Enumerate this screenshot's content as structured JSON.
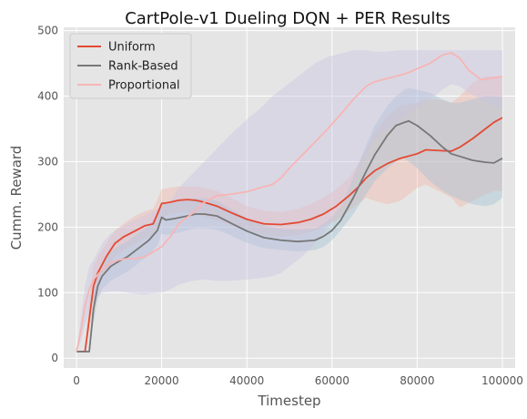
{
  "chart_data": {
    "type": "line",
    "title": "CartPole-v1 Dueling DQN + PER Results",
    "xlabel": "Timestep",
    "ylabel": "Cumm. Reward",
    "xlim": [
      -3000,
      103000
    ],
    "ylim": [
      -15,
      505
    ],
    "xticks": [
      0,
      20000,
      40000,
      60000,
      80000,
      100000
    ],
    "yticks": [
      0,
      100,
      200,
      300,
      400,
      500
    ],
    "grid": true,
    "legend_position": "top-left",
    "series": [
      {
        "name": "Uniform",
        "color": "#e24a33",
        "band_color": "#f4b4a4",
        "x": [
          0,
          2000,
          3000,
          4000,
          5000,
          7000,
          9000,
          11000,
          14000,
          16000,
          18000,
          19000,
          20000,
          22000,
          24000,
          26000,
          28000,
          30000,
          33000,
          36000,
          40000,
          44000,
          48000,
          52000,
          55000,
          58000,
          61000,
          64000,
          66000,
          68000,
          70000,
          73000,
          76000,
          80000,
          82000,
          85000,
          88000,
          90000,
          93000,
          96000,
          98000,
          100000
        ],
        "y": [
          10,
          10,
          60,
          110,
          130,
          155,
          175,
          185,
          195,
          202,
          205,
          220,
          236,
          238,
          241,
          242,
          241,
          238,
          232,
          223,
          212,
          205,
          204,
          207,
          212,
          220,
          232,
          248,
          260,
          275,
          286,
          297,
          305,
          312,
          318,
          317,
          316,
          322,
          335,
          350,
          360,
          367
        ],
        "lower": [
          10,
          10,
          40,
          85,
          110,
          135,
          155,
          165,
          175,
          183,
          188,
          200,
          215,
          220,
          222,
          222,
          220,
          216,
          210,
          203,
          195,
          188,
          185,
          188,
          192,
          200,
          210,
          225,
          235,
          245,
          240,
          235,
          240,
          260,
          265,
          255,
          245,
          230,
          240,
          250,
          255,
          255
        ],
        "upper": [
          10,
          12,
          85,
          140,
          155,
          175,
          195,
          205,
          218,
          224,
          228,
          242,
          258,
          260,
          262,
          262,
          262,
          260,
          255,
          246,
          232,
          225,
          223,
          228,
          235,
          245,
          258,
          275,
          295,
          320,
          345,
          370,
          385,
          390,
          395,
          395,
          390,
          400,
          420,
          430,
          430,
          430
        ]
      },
      {
        "name": "Rank-Based",
        "color": "#777777",
        "band_color": "#9ec1d4",
        "x": [
          0,
          2000,
          3000,
          4000,
          5000,
          6000,
          8000,
          10000,
          12000,
          14000,
          17000,
          19000,
          20000,
          21000,
          23000,
          26000,
          28000,
          30000,
          33000,
          36000,
          40000,
          44000,
          48000,
          52000,
          56000,
          58000,
          60000,
          62000,
          65000,
          68000,
          70000,
          73000,
          75000,
          77000,
          78000,
          80000,
          83000,
          86000,
          88000,
          90000,
          93000,
          96000,
          98000,
          100000
        ],
        "y": [
          10,
          10,
          10,
          75,
          110,
          125,
          140,
          148,
          155,
          165,
          180,
          195,
          215,
          211,
          213,
          217,
          220,
          220,
          217,
          207,
          194,
          184,
          180,
          178,
          180,
          186,
          195,
          210,
          245,
          285,
          310,
          340,
          355,
          360,
          362,
          355,
          340,
          322,
          312,
          308,
          302,
          299,
          298,
          305
        ],
        "lower": [
          10,
          10,
          10,
          55,
          90,
          105,
          118,
          125,
          132,
          142,
          158,
          172,
          190,
          188,
          190,
          195,
          198,
          198,
          196,
          188,
          176,
          168,
          165,
          163,
          165,
          170,
          180,
          195,
          220,
          250,
          270,
          290,
          300,
          305,
          300,
          290,
          270,
          255,
          248,
          242,
          235,
          232,
          235,
          245
        ],
        "upper": [
          10,
          10,
          12,
          95,
          130,
          145,
          162,
          172,
          178,
          188,
          202,
          218,
          240,
          236,
          238,
          242,
          244,
          244,
          240,
          228,
          214,
          202,
          197,
          196,
          198,
          205,
          215,
          230,
          275,
          325,
          355,
          385,
          400,
          410,
          412,
          410,
          405,
          395,
          390,
          390,
          395,
          400,
          400,
          398
        ]
      },
      {
        "name": "Proportional",
        "color": "#f7b5b5",
        "band_color": "#c7c3e3",
        "x": [
          0,
          1000,
          2000,
          3000,
          4000,
          6000,
          8000,
          10000,
          12000,
          14000,
          16000,
          18000,
          20000,
          22000,
          24000,
          27000,
          30000,
          33000,
          36000,
          40000,
          43000,
          46000,
          48000,
          50000,
          53000,
          56000,
          59000,
          62000,
          65000,
          68000,
          70000,
          73000,
          76000,
          78000,
          80000,
          83000,
          86000,
          88000,
          90000,
          92000,
          95000,
          98000,
          100000
        ],
        "y": [
          10,
          40,
          80,
          105,
          120,
          135,
          145,
          150,
          152,
          152,
          155,
          162,
          170,
          185,
          205,
          220,
          238,
          248,
          250,
          254,
          260,
          265,
          275,
          290,
          310,
          330,
          350,
          372,
          395,
          415,
          422,
          427,
          432,
          436,
          442,
          450,
          463,
          466,
          458,
          440,
          425,
          428,
          430
        ],
        "lower": [
          10,
          25,
          50,
          70,
          90,
          100,
          102,
          102,
          100,
          98,
          97,
          99,
          100,
          105,
          112,
          118,
          120,
          118,
          118,
          120,
          122,
          125,
          130,
          140,
          155,
          175,
          200,
          230,
          270,
          310,
          335,
          350,
          365,
          375,
          385,
          395,
          410,
          418,
          415,
          405,
          395,
          385,
          380
        ],
        "upper": [
          10,
          60,
          110,
          140,
          150,
          175,
          190,
          198,
          206,
          212,
          218,
          225,
          230,
          240,
          260,
          280,
          300,
          320,
          340,
          365,
          380,
          400,
          410,
          420,
          435,
          450,
          460,
          465,
          470,
          470,
          468,
          468,
          470,
          470,
          470,
          470,
          470,
          470,
          470,
          470,
          470,
          470,
          470
        ]
      }
    ]
  }
}
